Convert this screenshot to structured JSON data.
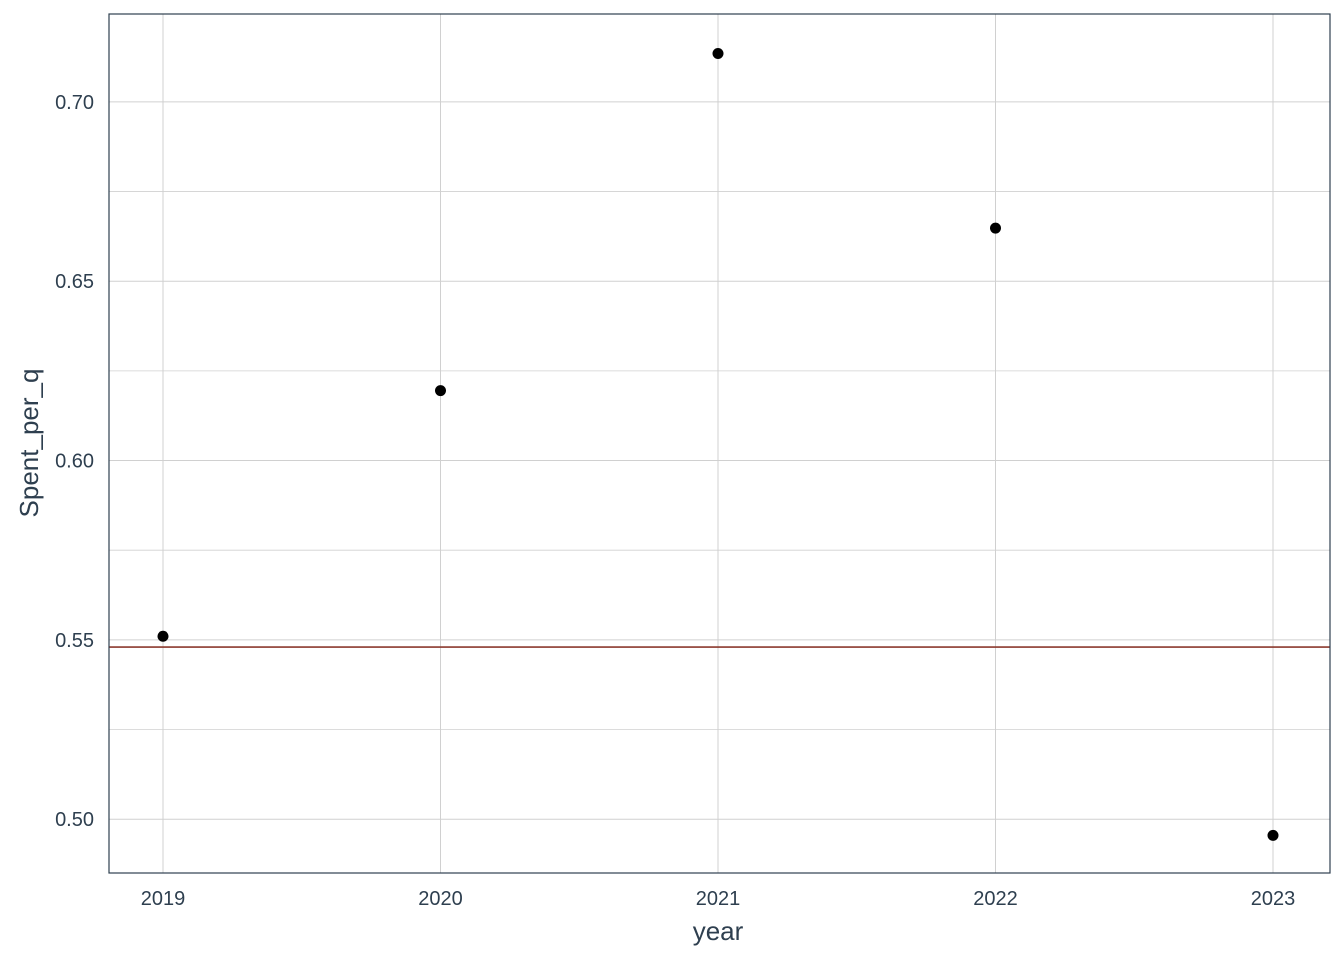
{
  "chart_data": {
    "type": "scatter",
    "title": "",
    "xlabel": "year",
    "ylabel": "Spent_per_q",
    "x_categories": [
      "2019",
      "2020",
      "2021",
      "2022",
      "2023"
    ],
    "points": [
      {
        "x": "2019",
        "y": 0.551
      },
      {
        "x": "2020",
        "y": 0.6195
      },
      {
        "x": "2021",
        "y": 0.7135
      },
      {
        "x": "2022",
        "y": 0.6648
      },
      {
        "x": "2023",
        "y": 0.4955
      }
    ],
    "reference_line": {
      "y": 0.548,
      "color": "#8b3a2e"
    },
    "ylim": [
      0.485,
      0.7245
    ],
    "y_ticks": [
      0.5,
      0.55,
      0.6,
      0.65,
      0.7
    ],
    "y_tick_labels": [
      "0.50",
      "0.55",
      "0.60",
      "0.65",
      "0.70"
    ],
    "y_minor_ticks": [
      0.525,
      0.575,
      0.625,
      0.675
    ],
    "grid": true,
    "colors": {
      "points": "#000000",
      "grid": "#d0d0d0",
      "panel_border": "#2e3f4f",
      "text": "#2e3f4f"
    }
  }
}
